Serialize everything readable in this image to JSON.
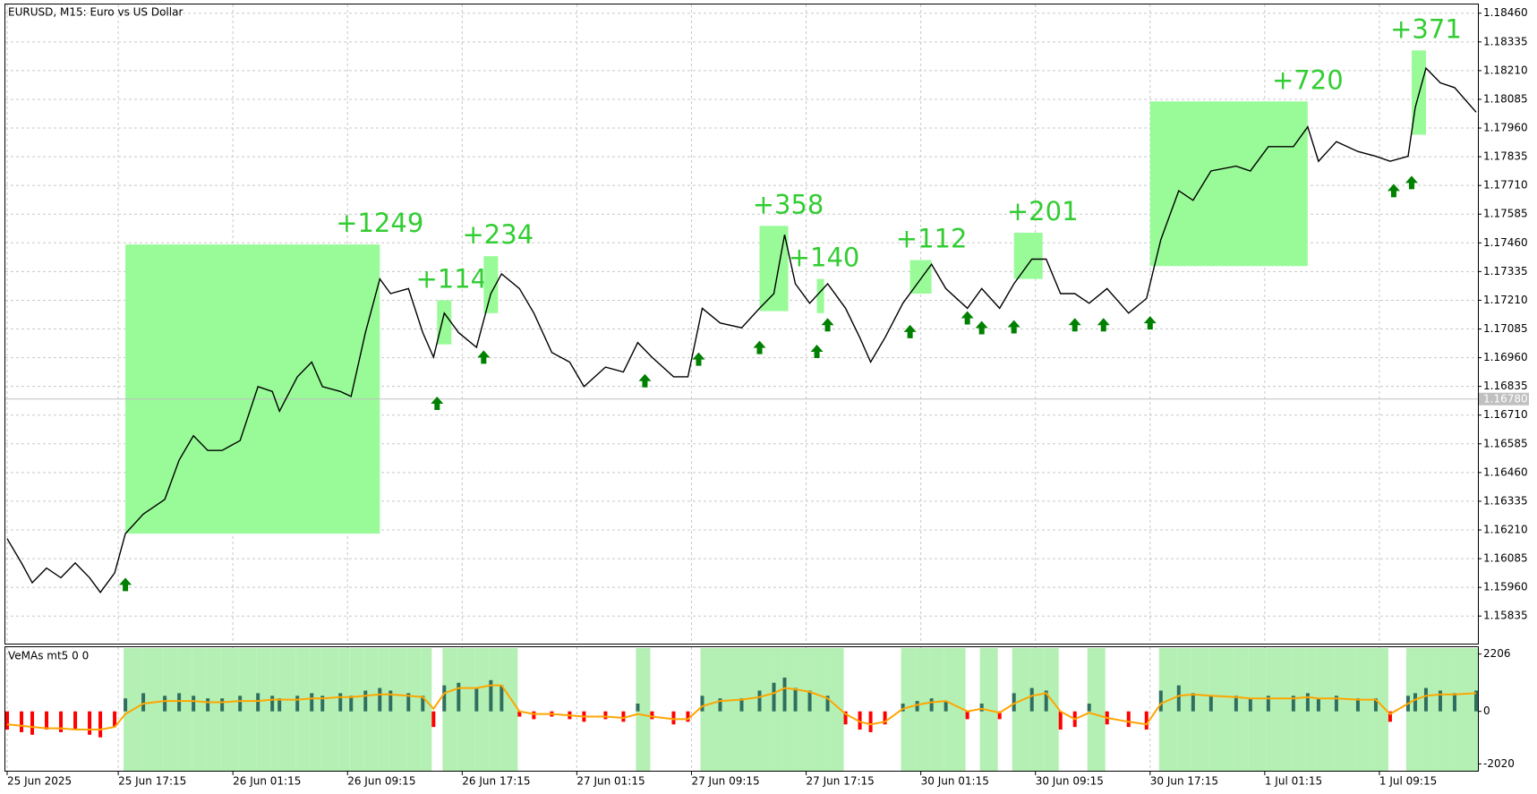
{
  "chart_data": [
    {
      "type": "line",
      "title": "EURUSD, M15:  Euro vs US Dollar",
      "color": "#000000",
      "x": [
        0,
        4,
        7,
        11,
        15,
        19,
        23,
        26,
        30,
        33,
        38,
        44,
        48,
        52,
        56,
        60,
        65,
        70,
        74,
        76,
        81,
        85,
        88,
        93,
        96,
        100,
        104,
        107,
        112,
        116,
        119,
        122,
        126,
        131,
        135,
        138,
        143,
        147,
        152,
        157,
        161,
        167,
        172,
        176,
        180,
        186,
        190,
        194,
        199,
        205,
        210,
        214,
        217,
        220,
        224,
        229,
        234,
        238,
        241,
        245,
        250,
        254,
        258,
        262,
        268,
        272,
        277,
        281,
        286,
        290,
        294,
        298,
        302,
        307,
        313,
        318,
        322,
        327,
        331,
        336,
        343,
        347,
        352,
        359,
        363,
        366,
        371,
        377,
        382,
        386,
        391,
        393,
        396,
        400,
        404,
        410
      ],
      "values": [
        1.16172,
        1.16066,
        1.1598,
        1.16044,
        1.16002,
        1.16066,
        1.16002,
        1.15938,
        1.16023,
        1.16194,
        1.16279,
        1.16343,
        1.16514,
        1.1662,
        1.16556,
        1.16556,
        1.16599,
        1.16834,
        1.16813,
        1.16727,
        1.16877,
        1.16941,
        1.16834,
        1.16813,
        1.16791,
        1.17069,
        1.17303,
        1.17239,
        1.17261,
        1.17069,
        1.16962,
        1.17154,
        1.17069,
        1.17005,
        1.17239,
        1.17325,
        1.17261,
        1.17154,
        1.16983,
        1.16941,
        1.16834,
        1.16919,
        1.16898,
        1.17026,
        1.16962,
        1.16877,
        1.16877,
        1.17175,
        1.17111,
        1.1709,
        1.17175,
        1.17239,
        1.17495,
        1.17282,
        1.17197,
        1.17282,
        1.17175,
        1.17047,
        1.16941,
        1.17047,
        1.17197,
        1.17282,
        1.17367,
        1.17261,
        1.17175,
        1.17261,
        1.17175,
        1.17282,
        1.17389,
        1.17389,
        1.17239,
        1.17239,
        1.17197,
        1.17261,
        1.17154,
        1.17218,
        1.17474,
        1.17687,
        1.17645,
        1.17773,
        1.17794,
        1.17773,
        1.17879,
        1.17879,
        1.17965,
        1.17815,
        1.17901,
        1.17858,
        1.17837,
        1.17815,
        1.17837,
        1.1805,
        1.18221,
        1.18157,
        1.18136,
        1.18029
      ],
      "xlim": [
        0,
        411
      ],
      "ylim": [
        1.15715,
        1.18498
      ],
      "yticks": [
        1.15835,
        {
          "value": 1.1596,
          "label": "1.15960"
        },
        1.16085,
        {
          "value": 1.1621,
          "label": "1.16210"
        },
        1.16335,
        {
          "value": 1.1646,
          "label": "1.16460"
        },
        1.16585,
        {
          "value": 1.1671,
          "label": "1.16710"
        },
        1.16835,
        {
          "value": 1.1696,
          "label": "1.16960"
        },
        1.17085,
        {
          "value": 1.1721,
          "label": "1.17210"
        },
        1.17335,
        {
          "value": 1.1746,
          "label": "1.17460"
        },
        1.17585,
        {
          "value": 1.1771,
          "label": "1.17710"
        },
        1.17835,
        {
          "value": 1.1796,
          "label": "1.17960"
        },
        1.18085,
        {
          "value": 1.1821,
          "label": "1.18210"
        },
        1.18335,
        {
          "value": 1.1846,
          "label": "1.18460"
        }
      ],
      "xticks": [
        {
          "value": 0,
          "label": "25 Jun 2025"
        },
        {
          "value": 31,
          "label": "25 Jun 17:15"
        },
        {
          "value": 63,
          "label": "26 Jun 01:15"
        },
        {
          "value": 95,
          "label": "26 Jun 09:15"
        },
        {
          "value": 127,
          "label": "26 Jun 17:15"
        },
        {
          "value": 159,
          "label": "27 Jun 01:15"
        },
        {
          "value": 191,
          "label": "27 Jun 09:15"
        },
        {
          "value": 223,
          "label": "27 Jun 17:15"
        },
        {
          "value": 255,
          "label": "30 Jun 01:15"
        },
        {
          "value": 287,
          "label": "30 Jun 09:15"
        },
        {
          "value": 319,
          "label": "30 Jun 17:15"
        },
        {
          "value": 351,
          "label": "1 Jul 01:15"
        },
        {
          "value": 383,
          "label": "1 Jul 09:15"
        }
      ],
      "grid": true,
      "current_price": {
        "value": 1.1678,
        "label": "1.16780"
      },
      "box_color": "#98fb98",
      "label_color": "#32cd32",
      "boxes": [
        {
          "x": [
            33,
            104
          ],
          "y": [
            1.17453,
            1.16194
          ],
          "label": "+1249"
        },
        {
          "x": [
            120,
            124
          ],
          "y": [
            1.1721,
            1.17018
          ],
          "label": "+114"
        },
        {
          "x": [
            133,
            137
          ],
          "y": [
            1.17402,
            1.17154
          ],
          "label": "+234"
        },
        {
          "x": [
            210,
            218
          ],
          "y": [
            1.17534,
            1.17163
          ],
          "label": "+358"
        },
        {
          "x": [
            226,
            228
          ],
          "y": [
            1.17303,
            1.17154
          ],
          "label": "+140"
        },
        {
          "x": [
            252,
            258
          ],
          "y": [
            1.17385,
            1.17239
          ],
          "label": "+112"
        },
        {
          "x": [
            281,
            289
          ],
          "y": [
            1.17504,
            1.17303
          ],
          "label": "+201"
        },
        {
          "x": [
            319,
            363
          ],
          "y": [
            1.18076,
            1.17359
          ],
          "label": "+720"
        },
        {
          "x": [
            392,
            396
          ],
          "y": [
            1.18298,
            1.17931
          ],
          "label": "+371"
        }
      ],
      "signals": {
        "color": "#008000",
        "x": [
          33,
          120,
          133,
          178,
          193,
          210,
          226,
          229,
          252,
          268,
          272,
          281,
          298,
          306,
          319,
          387,
          392
        ],
        "y": [
          1.16002,
          1.16791,
          1.16992,
          1.16889,
          1.16983,
          1.17034,
          1.17017,
          1.17133,
          1.17103,
          1.17163,
          1.1712,
          1.17124,
          1.17133,
          1.17133,
          1.17141,
          1.17717,
          1.17752
        ]
      }
    },
    {
      "type": "bar",
      "title": "VeMAs mt5 0 0",
      "x": [
        0,
        4,
        7,
        11,
        15,
        19,
        23,
        26,
        30,
        33,
        38,
        44,
        48,
        52,
        56,
        60,
        65,
        70,
        74,
        76,
        81,
        85,
        88,
        93,
        96,
        100,
        104,
        107,
        112,
        116,
        119,
        122,
        126,
        131,
        135,
        138,
        143,
        147,
        152,
        157,
        161,
        167,
        172,
        176,
        180,
        186,
        190,
        194,
        199,
        205,
        210,
        214,
        217,
        220,
        224,
        229,
        234,
        238,
        241,
        245,
        250,
        254,
        258,
        262,
        268,
        272,
        277,
        281,
        286,
        290,
        294,
        298,
        302,
        307,
        313,
        318,
        322,
        327,
        331,
        336,
        343,
        347,
        352,
        359,
        363,
        366,
        371,
        377,
        382,
        386,
        391,
        393,
        396,
        400,
        404,
        410
      ],
      "values": [
        -700,
        -800,
        -900,
        -700,
        -800,
        -700,
        -900,
        -1000,
        -600,
        500,
        700,
        600,
        700,
        600,
        500,
        500,
        600,
        700,
        600,
        500,
        600,
        700,
        600,
        700,
        600,
        800,
        900,
        800,
        700,
        600,
        -600,
        1000,
        1100,
        900,
        1200,
        1000,
        -200,
        -300,
        -200,
        -300,
        -400,
        -300,
        -400,
        300,
        -300,
        -500,
        -400,
        600,
        500,
        500,
        800,
        1100,
        1300,
        900,
        800,
        600,
        -500,
        -700,
        -800,
        -500,
        300,
        400,
        500,
        400,
        -300,
        300,
        -300,
        700,
        900,
        800,
        -700,
        -600,
        300,
        -500,
        -600,
        -700,
        800,
        1000,
        700,
        600,
        600,
        500,
        600,
        600,
        700,
        500,
        600,
        500,
        500,
        -400,
        600,
        700,
        900,
        800,
        700,
        800
      ],
      "line_values": [
        -500,
        -550,
        -600,
        -650,
        -650,
        -700,
        -700,
        -700,
        -600,
        -100,
        300,
        400,
        400,
        400,
        350,
        350,
        400,
        400,
        450,
        450,
        450,
        500,
        500,
        550,
        550,
        600,
        650,
        650,
        600,
        550,
        100,
        700,
        900,
        900,
        1000,
        1000,
        0,
        -100,
        -100,
        -150,
        -200,
        -200,
        -250,
        -100,
        -200,
        -300,
        -300,
        200,
        400,
        450,
        550,
        700,
        900,
        850,
        750,
        500,
        -100,
        -400,
        -500,
        -400,
        100,
        250,
        350,
        400,
        0,
        100,
        -50,
        300,
        600,
        700,
        0,
        -300,
        -50,
        -250,
        -400,
        -500,
        300,
        600,
        650,
        600,
        550,
        500,
        500,
        500,
        550,
        500,
        500,
        450,
        450,
        -100,
        300,
        450,
        600,
        650,
        650,
        700
      ],
      "positive_color": "#2f6f5f",
      "negative_color": "#ff0000",
      "line_color": "#ffa500",
      "band_color": "#b4f0b4",
      "xlim": [
        0,
        411
      ],
      "ylim": [
        -2282,
        2468
      ],
      "yticks": [
        2206,
        0,
        -2020
      ]
    }
  ]
}
